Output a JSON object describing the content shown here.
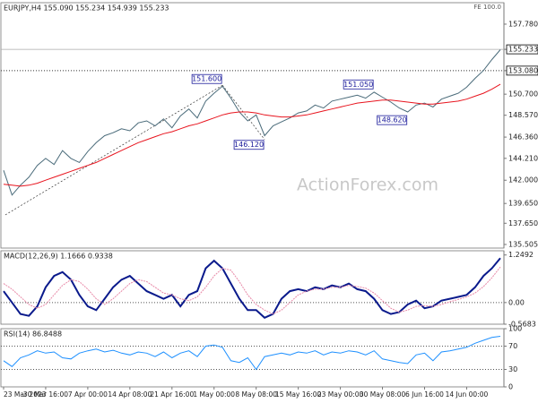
{
  "chart_data": [
    {
      "type": "line",
      "title": "EURJPY,H4 155.090 155.234 154.939 155.233",
      "note": "FE 100.0",
      "watermark": "ActionForex.com",
      "categories": [
        "23 Mar 2023",
        null,
        null,
        null,
        null,
        "30 Mar 16:00",
        null,
        null,
        null,
        null,
        "7 Apr 00:00",
        null,
        null,
        null,
        null,
        "14 Apr 08:00",
        null,
        null,
        null,
        null,
        "21 Apr 16:00",
        null,
        null,
        null,
        null,
        "1 May 00:00",
        null,
        null,
        null,
        null,
        "8 May 08:00",
        null,
        null,
        null,
        null,
        "15 May 16:00",
        null,
        null,
        null,
        null,
        "23 May 00:00",
        null,
        null,
        null,
        null,
        "30 May 08:00",
        null,
        null,
        null,
        null,
        "6 Jun 16:00",
        null,
        null,
        null,
        null,
        "14 Jun 00:00",
        null,
        null,
        null,
        null
      ],
      "series": [
        {
          "name": "EURJPY",
          "color": "#4a6b7a",
          "values": [
            143.0,
            140.5,
            141.5,
            142.3,
            143.5,
            144.2,
            143.6,
            145.0,
            144.2,
            143.8,
            144.9,
            145.8,
            146.5,
            146.8,
            147.2,
            147.0,
            147.8,
            148.0,
            147.5,
            148.2,
            147.3,
            148.5,
            149.2,
            148.3,
            150.0,
            150.8,
            151.5,
            150.3,
            148.9,
            148.0,
            148.6,
            146.5,
            147.5,
            147.9,
            148.3,
            148.8,
            149.0,
            149.6,
            149.3,
            150.0,
            150.2,
            150.4,
            150.6,
            150.3,
            150.9,
            150.4,
            149.9,
            149.3,
            148.9,
            149.6,
            149.8,
            149.4,
            150.2,
            150.5,
            150.8,
            151.4,
            152.3,
            153.1,
            154.2,
            155.2
          ]
        },
        {
          "name": "MA",
          "color": "#e8141e",
          "values": [
            141.6,
            141.5,
            141.4,
            141.5,
            141.7,
            142.0,
            142.3,
            142.6,
            142.9,
            143.2,
            143.5,
            143.8,
            144.2,
            144.6,
            145.0,
            145.4,
            145.8,
            146.1,
            146.4,
            146.7,
            146.9,
            147.2,
            147.5,
            147.7,
            148.0,
            148.3,
            148.6,
            148.8,
            148.9,
            148.9,
            148.8,
            148.6,
            148.5,
            148.4,
            148.4,
            148.5,
            148.6,
            148.8,
            149.0,
            149.2,
            149.4,
            149.6,
            149.8,
            149.9,
            150.0,
            150.1,
            150.1,
            150.0,
            149.9,
            149.8,
            149.7,
            149.7,
            149.8,
            149.9,
            150.0,
            150.2,
            150.5,
            150.8,
            151.2,
            151.7
          ]
        }
      ],
      "annotations": [
        {
          "value": 151.6,
          "label": "151.600"
        },
        {
          "value": 151.05,
          "label": "151.050"
        },
        {
          "value": 146.12,
          "label": "146.120"
        },
        {
          "value": 148.62,
          "label": "148.620"
        }
      ],
      "ylim": [
        135.14,
        159.95
      ],
      "yticks": [
        {
          "value": 157.78,
          "label": "157.780"
        },
        155.233,
        {
          "value": 153.08,
          "label": "153.080"
        },
        {
          "value": 150.7,
          "label": "150.700"
        },
        {
          "value": 148.57,
          "label": "148.570"
        },
        {
          "value": 146.36,
          "label": "146.360"
        },
        {
          "value": 144.21,
          "label": "144.210"
        },
        {
          "value": 142.0,
          "label": "142.000"
        },
        {
          "value": 139.65,
          "label": "139.650"
        },
        {
          "value": 137.65,
          "label": "137.650"
        },
        135.505
      ]
    },
    {
      "type": "line",
      "title": "MACD(12,26,9) 1.1666 0.9338",
      "series": [
        {
          "name": "MACD",
          "color": "#0a1a8c",
          "values": [
            0.3,
            0.0,
            -0.3,
            -0.35,
            -0.1,
            0.4,
            0.7,
            0.8,
            0.6,
            0.2,
            -0.1,
            -0.2,
            0.1,
            0.4,
            0.6,
            0.7,
            0.5,
            0.3,
            0.2,
            0.1,
            0.2,
            -0.1,
            0.2,
            0.3,
            0.9,
            1.1,
            0.9,
            0.5,
            0.1,
            -0.2,
            -0.2,
            -0.4,
            -0.3,
            0.1,
            0.3,
            0.35,
            0.3,
            0.4,
            0.35,
            0.45,
            0.4,
            0.5,
            0.35,
            0.3,
            0.1,
            -0.2,
            -0.3,
            -0.25,
            -0.05,
            0.05,
            -0.15,
            -0.1,
            0.05,
            0.1,
            0.15,
            0.2,
            0.4,
            0.7,
            0.9,
            1.1666
          ]
        },
        {
          "name": "Signal",
          "color": "#e88aa8",
          "values": [
            0.5,
            0.35,
            0.15,
            -0.05,
            -0.15,
            -0.05,
            0.2,
            0.45,
            0.6,
            0.55,
            0.35,
            0.1,
            -0.05,
            0.1,
            0.3,
            0.5,
            0.6,
            0.55,
            0.4,
            0.25,
            0.2,
            0.1,
            0.05,
            0.15,
            0.4,
            0.7,
            0.9,
            0.85,
            0.55,
            0.2,
            -0.05,
            -0.2,
            -0.3,
            -0.2,
            0.0,
            0.2,
            0.3,
            0.35,
            0.35,
            0.4,
            0.4,
            0.45,
            0.42,
            0.38,
            0.25,
            0.05,
            -0.15,
            -0.25,
            -0.2,
            -0.1,
            -0.08,
            -0.1,
            -0.05,
            0.02,
            0.08,
            0.15,
            0.25,
            0.42,
            0.65,
            0.9338
          ]
        }
      ],
      "ylim": [
        -0.5683,
        1.36
      ],
      "yticks": [
        1.2492,
        {
          "value": 0,
          "label": "0.00"
        },
        -0.5683
      ]
    },
    {
      "type": "line",
      "title": "RSI(14) 86.8488",
      "series": [
        {
          "name": "RSI",
          "color": "#1e90ff",
          "values": [
            45,
            35,
            50,
            55,
            62,
            58,
            60,
            50,
            48,
            58,
            62,
            65,
            60,
            63,
            58,
            55,
            60,
            58,
            52,
            60,
            50,
            58,
            62,
            52,
            70,
            72,
            68,
            45,
            42,
            50,
            30,
            52,
            55,
            58,
            55,
            60,
            58,
            62,
            55,
            60,
            58,
            62,
            60,
            55,
            62,
            48,
            45,
            42,
            40,
            55,
            58,
            45,
            60,
            62,
            65,
            68,
            75,
            80,
            85,
            86.8488
          ]
        }
      ],
      "ylim": [
        0,
        100
      ],
      "yticks": [
        100,
        70,
        30,
        0
      ]
    }
  ]
}
